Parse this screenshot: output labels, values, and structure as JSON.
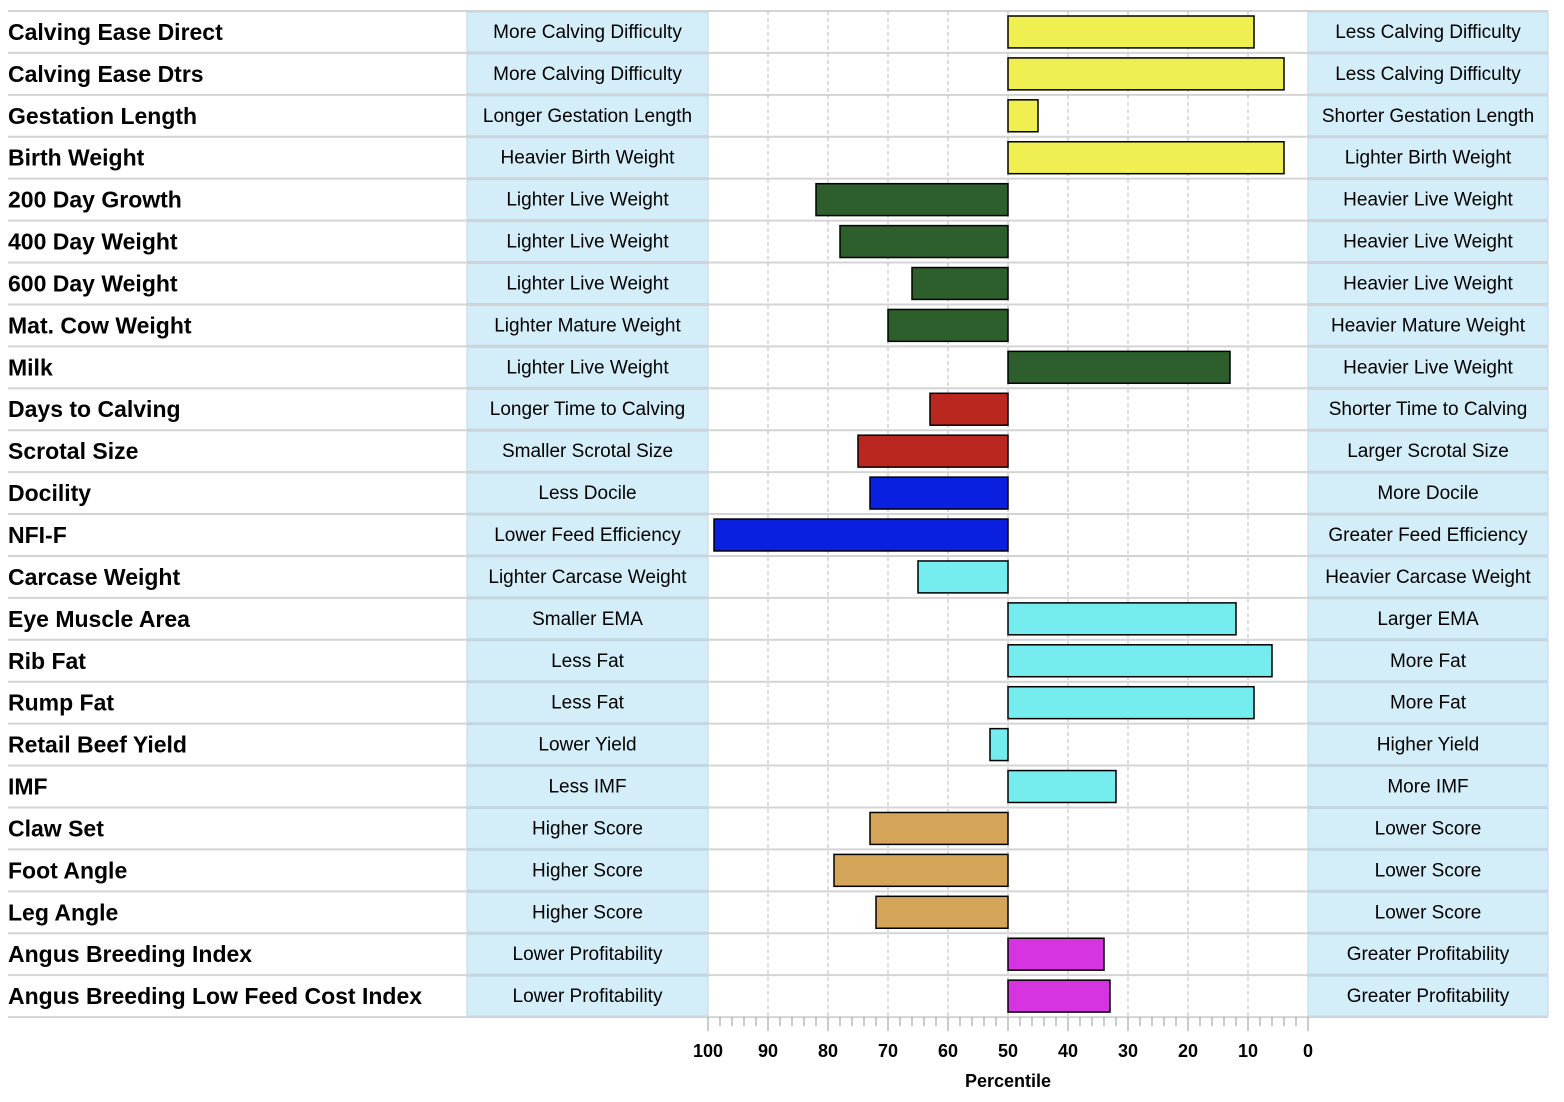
{
  "chart_data": {
    "type": "bar",
    "orientation": "horizontal-diverging",
    "center": 50,
    "xlabel": "Percentile",
    "xlim": [
      100,
      0
    ],
    "xticks": [
      100,
      90,
      80,
      70,
      60,
      50,
      40,
      30,
      20,
      10,
      0
    ],
    "grid": true,
    "colors": {
      "yellow": "#f0ef52",
      "green": "#2c5f2b",
      "red": "#b9271e",
      "blue": "#0a20e0",
      "cyan": "#75eced",
      "tan": "#d4a458",
      "magenta": "#d534e0",
      "label_box": "#d3eef9",
      "label_border": "#bfd6e2",
      "grid": "#bbbbbb",
      "row_line": "#d4d4d4"
    },
    "traits": [
      {
        "name": "Calving Ease Direct",
        "low_label": "More Calving Difficulty",
        "high_label": "Less Calving Difficulty",
        "percentile": 9,
        "color": "yellow"
      },
      {
        "name": "Calving Ease Dtrs",
        "low_label": "More Calving Difficulty",
        "high_label": "Less Calving Difficulty",
        "percentile": 4,
        "color": "yellow"
      },
      {
        "name": "Gestation Length",
        "low_label": "Longer Gestation Length",
        "high_label": "Shorter Gestation Length",
        "percentile": 45,
        "color": "yellow"
      },
      {
        "name": "Birth Weight",
        "low_label": "Heavier Birth Weight",
        "high_label": "Lighter Birth Weight",
        "percentile": 4,
        "color": "yellow"
      },
      {
        "name": "200 Day Growth",
        "low_label": "Lighter Live Weight",
        "high_label": "Heavier Live Weight",
        "percentile": 82,
        "color": "green"
      },
      {
        "name": "400 Day Weight",
        "low_label": "Lighter Live Weight",
        "high_label": "Heavier Live Weight",
        "percentile": 78,
        "color": "green"
      },
      {
        "name": "600 Day Weight",
        "low_label": "Lighter Live Weight",
        "high_label": "Heavier Live Weight",
        "percentile": 66,
        "color": "green"
      },
      {
        "name": "Mat. Cow Weight",
        "low_label": "Lighter Mature Weight",
        "high_label": "Heavier Mature Weight",
        "percentile": 70,
        "color": "green"
      },
      {
        "name": "Milk",
        "low_label": "Lighter Live Weight",
        "high_label": "Heavier Live Weight",
        "percentile": 13,
        "color": "green"
      },
      {
        "name": "Days to Calving",
        "low_label": "Longer Time to Calving",
        "high_label": "Shorter Time to Calving",
        "percentile": 63,
        "color": "red"
      },
      {
        "name": "Scrotal Size",
        "low_label": "Smaller Scrotal Size",
        "high_label": "Larger Scrotal Size",
        "percentile": 75,
        "color": "red"
      },
      {
        "name": "Docility",
        "low_label": "Less Docile",
        "high_label": "More Docile",
        "percentile": 73,
        "color": "blue"
      },
      {
        "name": "NFI-F",
        "low_label": "Lower Feed Efficiency",
        "high_label": "Greater Feed Efficiency",
        "percentile": 99,
        "color": "blue"
      },
      {
        "name": "Carcase Weight",
        "low_label": "Lighter Carcase Weight",
        "high_label": "Heavier Carcase Weight",
        "percentile": 65,
        "color": "cyan"
      },
      {
        "name": "Eye Muscle Area",
        "low_label": "Smaller EMA",
        "high_label": "Larger EMA",
        "percentile": 12,
        "color": "cyan"
      },
      {
        "name": "Rib Fat",
        "low_label": "Less Fat",
        "high_label": "More Fat",
        "percentile": 6,
        "color": "cyan"
      },
      {
        "name": "Rump Fat",
        "low_label": "Less Fat",
        "high_label": "More Fat",
        "percentile": 9,
        "color": "cyan"
      },
      {
        "name": "Retail Beef Yield",
        "low_label": "Lower Yield",
        "high_label": "Higher Yield",
        "percentile": 53,
        "color": "cyan"
      },
      {
        "name": "IMF",
        "low_label": "Less IMF",
        "high_label": "More IMF",
        "percentile": 32,
        "color": "cyan"
      },
      {
        "name": "Claw Set",
        "low_label": "Higher Score",
        "high_label": "Lower Score",
        "percentile": 73,
        "color": "tan"
      },
      {
        "name": "Foot Angle",
        "low_label": "Higher Score",
        "high_label": "Lower Score",
        "percentile": 79,
        "color": "tan"
      },
      {
        "name": "Leg Angle",
        "low_label": "Higher Score",
        "high_label": "Lower Score",
        "percentile": 72,
        "color": "tan"
      },
      {
        "name": "Angus Breeding Index",
        "low_label": "Lower Profitability",
        "high_label": "Greater Profitability",
        "percentile": 34,
        "color": "magenta"
      },
      {
        "name": "Angus Breeding Low Feed Cost Index",
        "low_label": "Lower Profitability",
        "high_label": "Greater Profitability",
        "percentile": 33,
        "color": "magenta"
      }
    ]
  }
}
